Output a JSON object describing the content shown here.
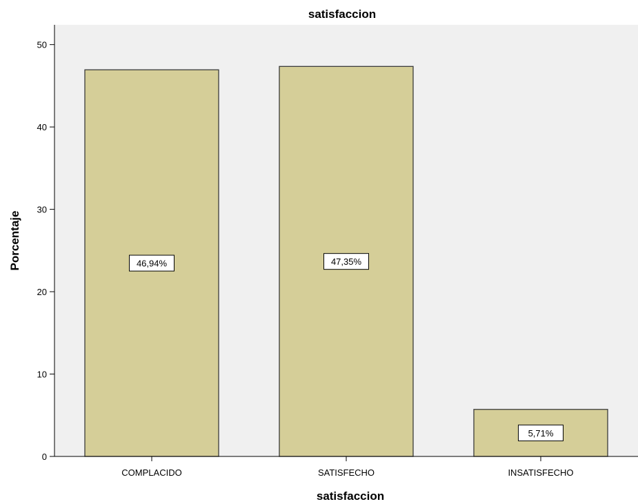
{
  "chart_data": {
    "type": "bar",
    "title": "satisfaccion",
    "xlabel": "satisfaccion",
    "ylabel": "Porcentaje",
    "categories": [
      "COMPLACIDO",
      "SATISFECHO",
      "INSATISFECHO"
    ],
    "values": [
      46.94,
      47.35,
      5.71
    ],
    "data_labels": [
      "46,94%",
      "47,35%",
      "5,71%"
    ],
    "ylim": [
      0,
      52.4
    ],
    "yticks": [
      0,
      10,
      20,
      30,
      40,
      50
    ],
    "grid": false,
    "legend": "none",
    "colors": {
      "plot_background": "#f0f0f0",
      "bar_fill": "#d5ce98",
      "bar_stroke": "#3a3a3a",
      "label_box": "#ffffff"
    }
  }
}
